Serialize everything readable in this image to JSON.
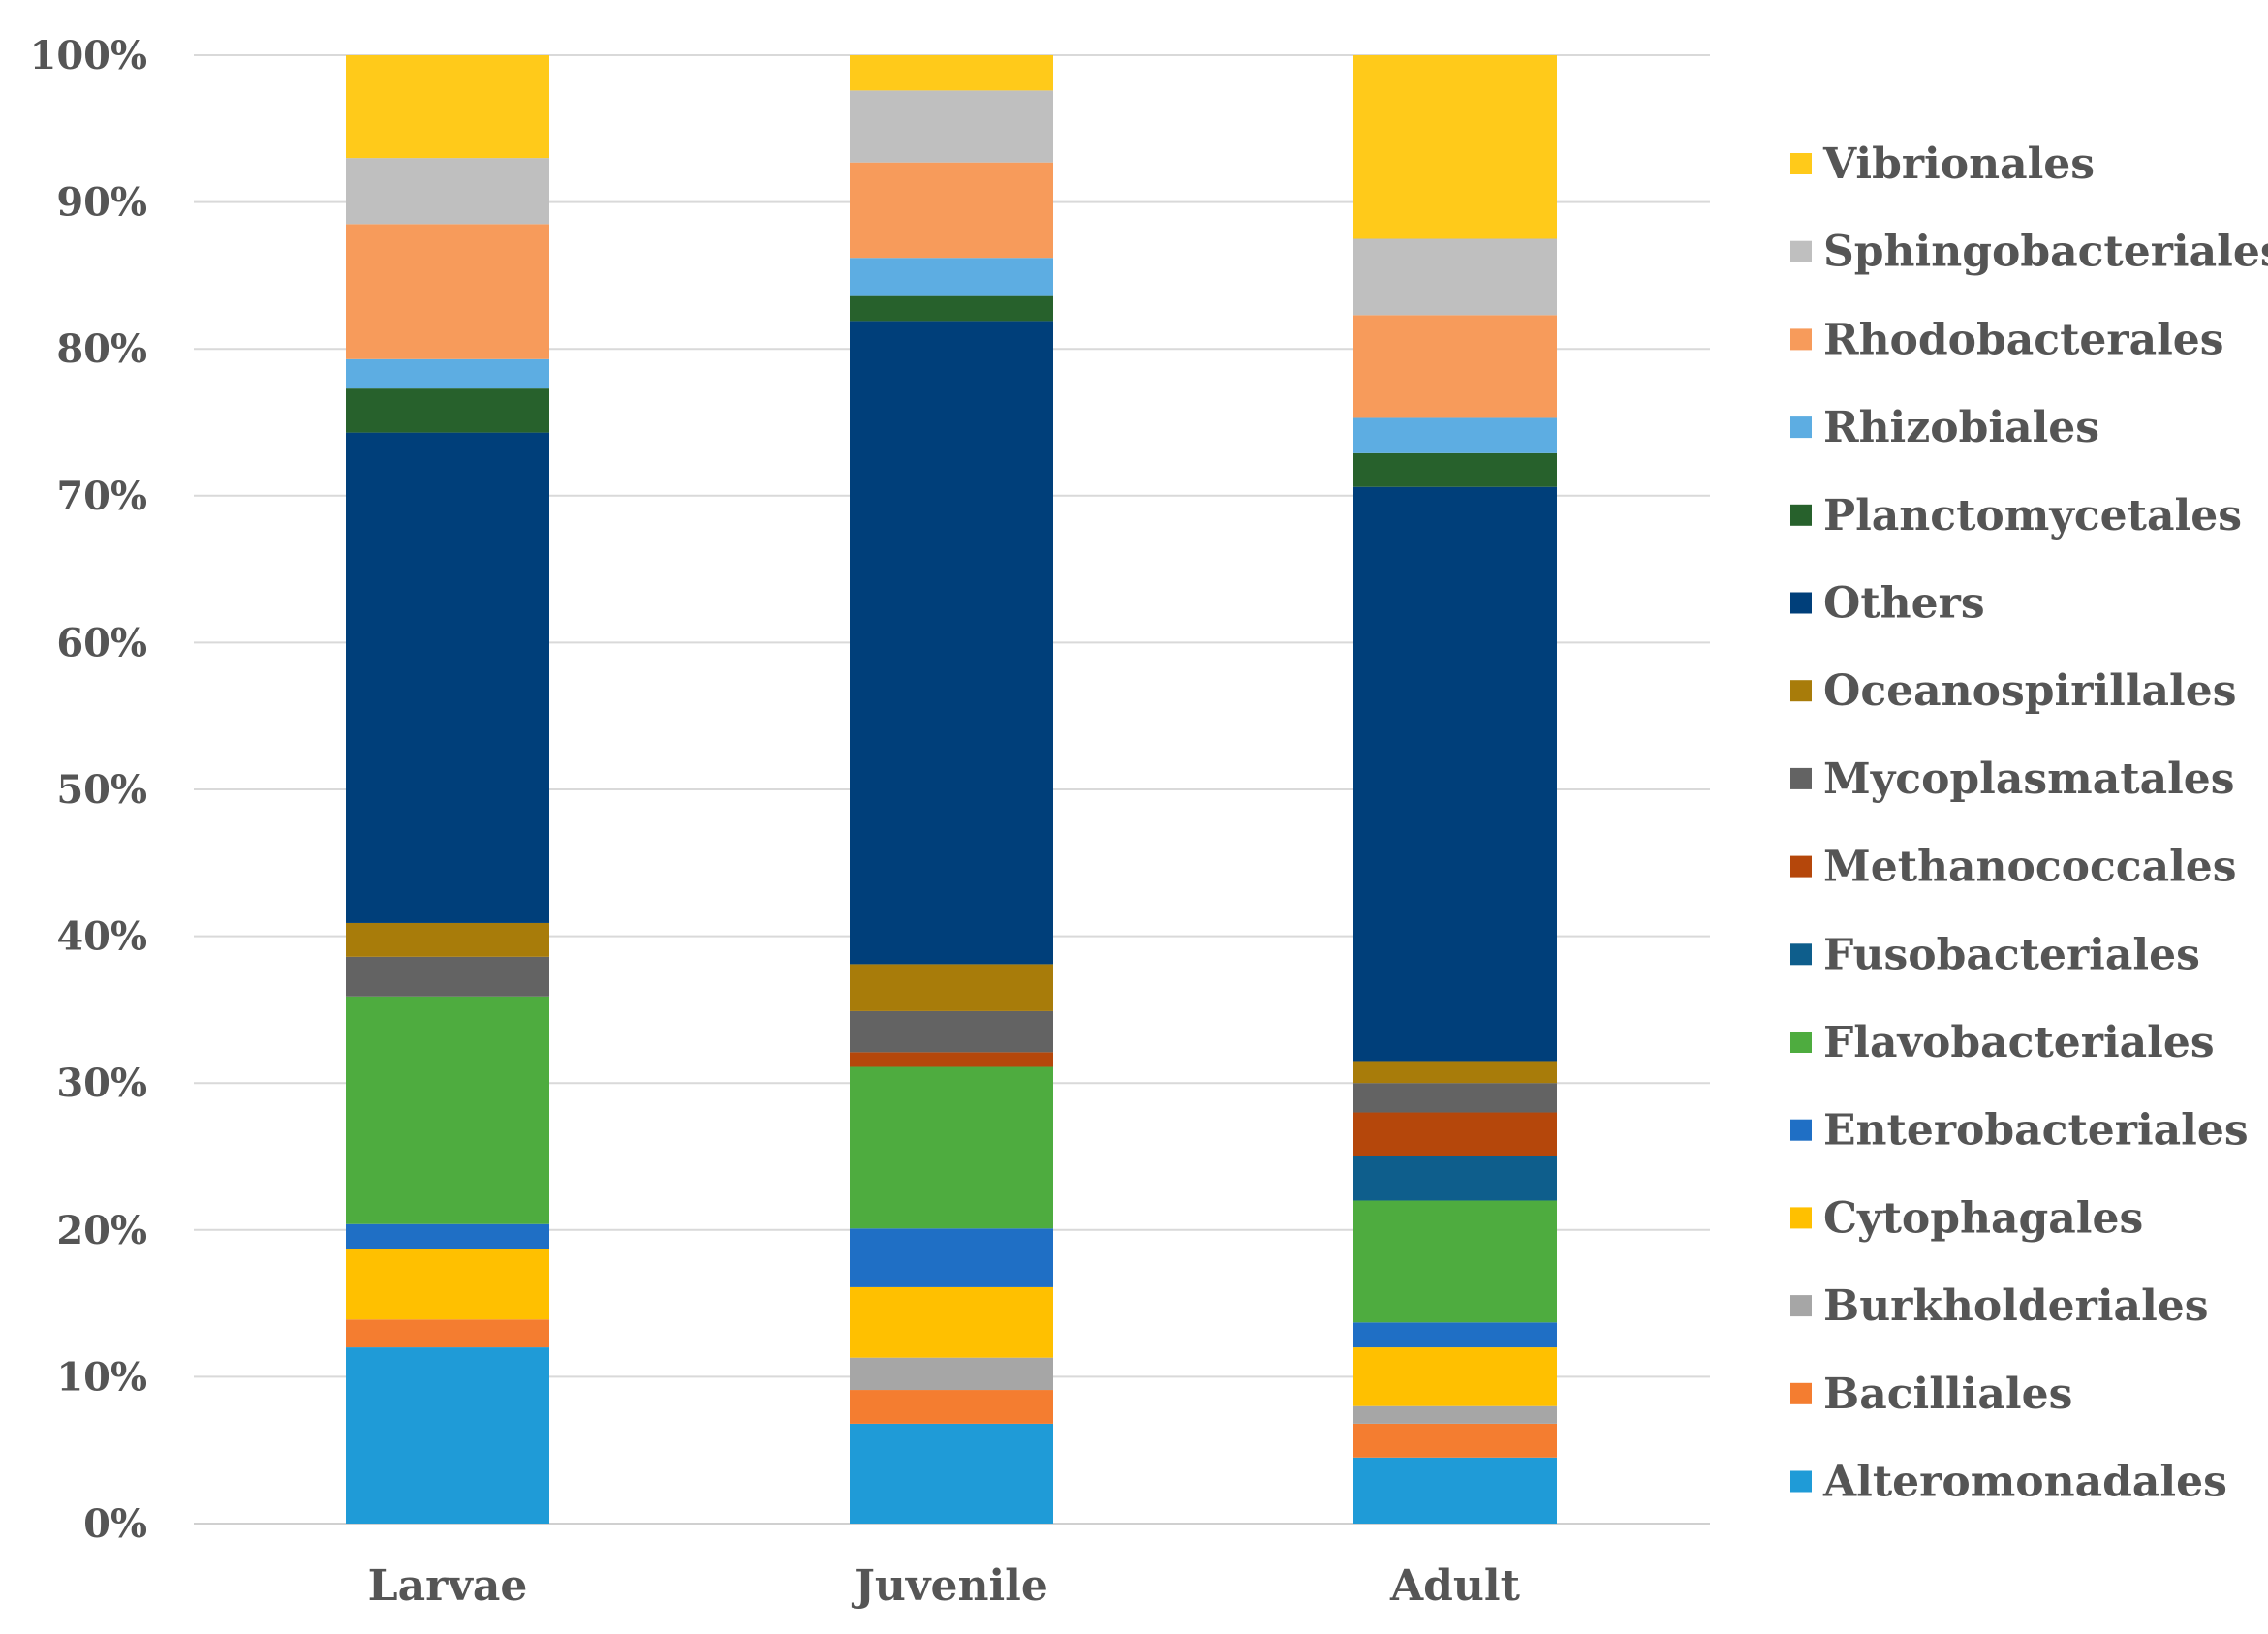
{
  "chart_data": {
    "type": "bar",
    "stacked": true,
    "normalized": true,
    "title": "",
    "xlabel": "",
    "ylabel": "",
    "ylim": [
      0,
      100
    ],
    "y_ticks": [
      "0%",
      "10%",
      "20%",
      "30%",
      "40%",
      "50%",
      "60%",
      "70%",
      "80%",
      "90%",
      "100%"
    ],
    "y_tick_values": [
      0,
      10,
      20,
      30,
      40,
      50,
      60,
      70,
      80,
      90,
      100
    ],
    "grid": true,
    "legend_position": "right",
    "categories": [
      "Larvae",
      "Juvenile",
      "Adult"
    ],
    "series": [
      {
        "name": "Alteromonadales",
        "color": "#1F9BD7",
        "values": [
          12.0,
          6.8,
          4.5
        ]
      },
      {
        "name": "Bacilliales",
        "color": "#F47D30",
        "values": [
          1.9,
          2.3,
          2.3
        ]
      },
      {
        "name": "Burkholderiales",
        "color": "#A6A6A6",
        "values": [
          0.0,
          2.2,
          1.2
        ]
      },
      {
        "name": "Cytophagales",
        "color": "#FFC000",
        "values": [
          4.8,
          4.8,
          4.0
        ]
      },
      {
        "name": "Enterobacteriales",
        "color": "#1F6FC5",
        "values": [
          1.7,
          4.0,
          1.7
        ]
      },
      {
        "name": "Flavobacteriales",
        "color": "#4EAC3F",
        "values": [
          15.5,
          11.0,
          8.3
        ]
      },
      {
        "name": "Fusobacteriales",
        "color": "#0E5E8C",
        "values": [
          0.0,
          0.0,
          3.0
        ]
      },
      {
        "name": "Methanococcales",
        "color": "#B5470B",
        "values": [
          0.0,
          1.0,
          3.0
        ]
      },
      {
        "name": "Mycoplasmatales",
        "color": "#636363",
        "values": [
          2.7,
          2.8,
          2.0
        ]
      },
      {
        "name": "Oceanospirillales",
        "color": "#A87C0A",
        "values": [
          2.3,
          3.2,
          1.5
        ]
      },
      {
        "name": "Others",
        "color": "#003F7A",
        "values": [
          33.4,
          43.8,
          39.1
        ]
      },
      {
        "name": "Planctomycetales",
        "color": "#27612C",
        "values": [
          3.0,
          1.7,
          2.3
        ]
      },
      {
        "name": "Rhizobiales",
        "color": "#5DADE2",
        "values": [
          2.0,
          2.6,
          2.4
        ]
      },
      {
        "name": "Rhodobacterales",
        "color": "#F79B5B",
        "values": [
          9.2,
          6.5,
          7.0
        ]
      },
      {
        "name": "Sphingobacteriales",
        "color": "#BFBFBF",
        "values": [
          4.5,
          4.9,
          5.2
        ]
      },
      {
        "name": "Vibrionales",
        "color": "#FFCA1A",
        "values": [
          7.0,
          2.4,
          12.5
        ]
      }
    ]
  }
}
